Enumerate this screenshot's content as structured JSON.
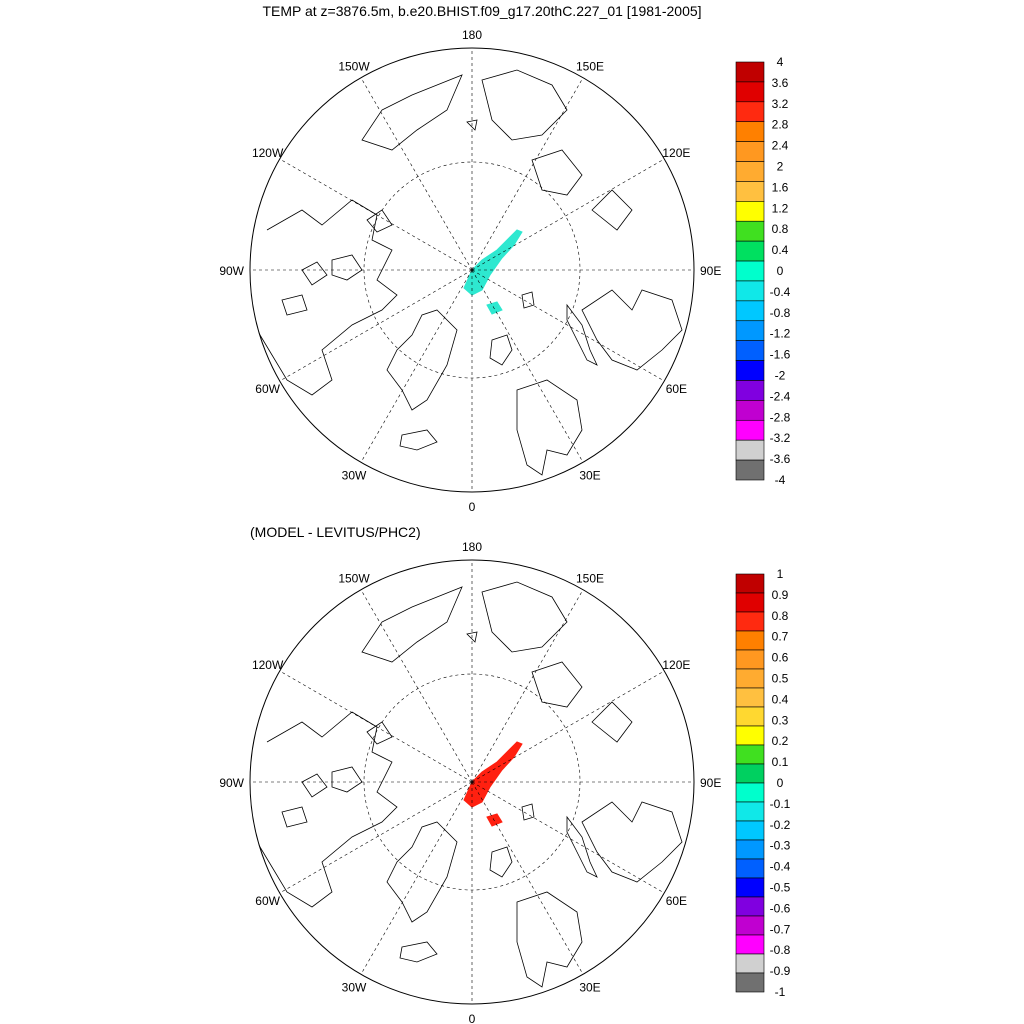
{
  "main_title": "TEMP at z=3876.5m, b.e20.BHIST.f09_g17.20thC.227_01 [1981-2005]",
  "lon_labels": [
    "180",
    "150E",
    "120E",
    "90E",
    "60E",
    "30E",
    "0",
    "30W",
    "60W",
    "90W",
    "120W",
    "150W"
  ],
  "panels": [
    {
      "title": "",
      "anomaly_color": "#2ee8d0",
      "colorbar": {
        "labels": [
          "4",
          "3.6",
          "3.2",
          "2.8",
          "2.4",
          "2",
          "1.6",
          "1.2",
          "0.8",
          "0.4",
          "0",
          "-0.4",
          "-0.8",
          "-1.2",
          "-1.6",
          "-2",
          "-2.4",
          "-2.8",
          "-3.2",
          "-3.6",
          "-4"
        ],
        "colors": [
          "#c00000",
          "#e00000",
          "#ff2a10",
          "#ff8000",
          "#ff9820",
          "#ffab30",
          "#ffc040",
          "#ffff00",
          "#40e020",
          "#00e060",
          "#00ffcc",
          "#10e8e8",
          "#00c8ff",
          "#0098ff",
          "#0060ff",
          "#0000ff",
          "#8000e0",
          "#c000d0",
          "#ff00ff",
          "#d0d0d0",
          "#707070"
        ]
      }
    },
    {
      "title": "(MODEL - LEVITUS/PHC2)",
      "anomaly_color": "#ff2010",
      "colorbar": {
        "labels": [
          "1",
          "0.9",
          "0.8",
          "0.7",
          "0.6",
          "0.5",
          "0.4",
          "0.3",
          "0.2",
          "0.1",
          "0",
          "-0.1",
          "-0.2",
          "-0.3",
          "-0.4",
          "-0.5",
          "-0.6",
          "-0.7",
          "-0.8",
          "-0.9",
          "-1"
        ],
        "colors": [
          "#c00000",
          "#e00000",
          "#ff2a10",
          "#ff8000",
          "#ff9820",
          "#ffab30",
          "#ffc040",
          "#ffd830",
          "#ffff00",
          "#40e020",
          "#00d060",
          "#00ffcc",
          "#10e8e8",
          "#00c8ff",
          "#0098ff",
          "#0060ff",
          "#0000ff",
          "#8000e0",
          "#c000d0",
          "#ff00ff",
          "#d0d0d0",
          "#707070"
        ]
      }
    }
  ]
}
